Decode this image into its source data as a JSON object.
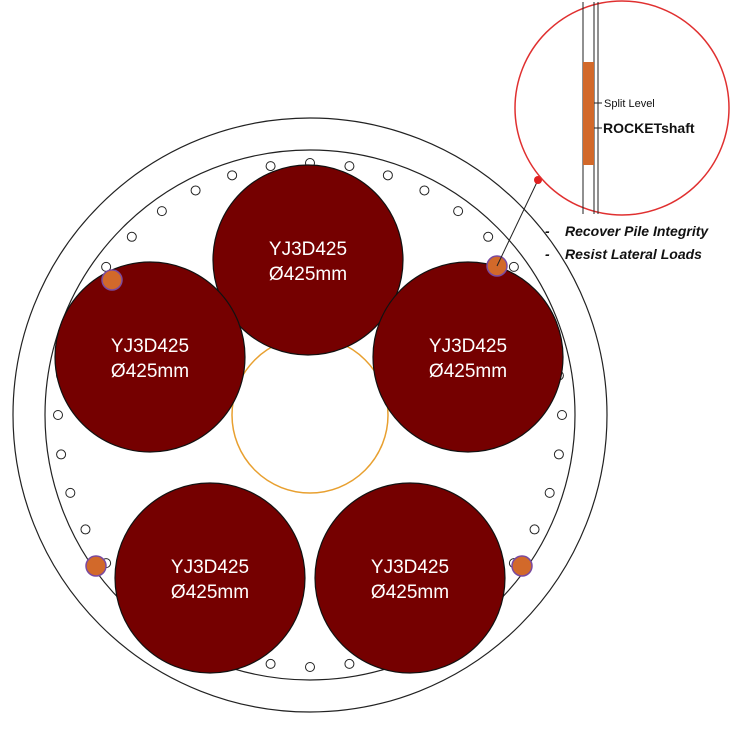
{
  "piles": [
    {
      "name": "YJ3D425",
      "diameter": "Ø425mm"
    },
    {
      "name": "YJ3D425",
      "diameter": "Ø425mm"
    },
    {
      "name": "YJ3D425",
      "diameter": "Ø425mm"
    },
    {
      "name": "YJ3D425",
      "diameter": "Ø425mm"
    },
    {
      "name": "YJ3D425",
      "diameter": "Ø425mm"
    }
  ],
  "callout": {
    "split_level": "Split Level",
    "product": "ROCKETshaft"
  },
  "benefits": [
    "Recover Pile Integrity",
    "Resist Lateral Loads"
  ]
}
